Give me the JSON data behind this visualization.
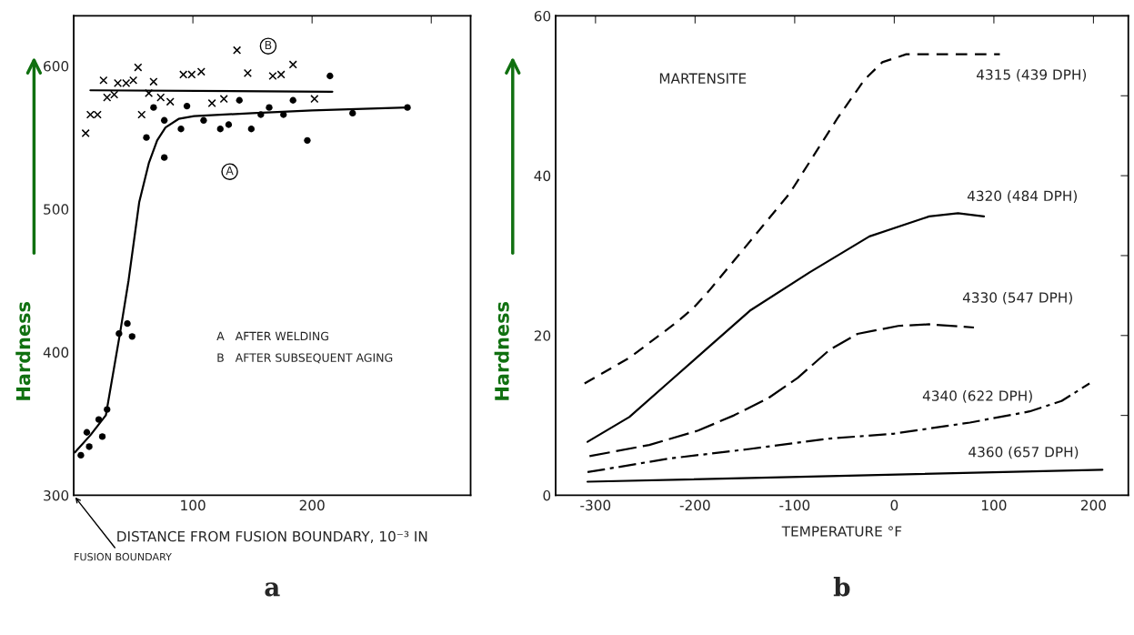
{
  "chart_data": [
    {
      "type": "line",
      "title": "a",
      "xlabel": "DISTANCE FROM FUSION BOUNDARY, 10⁻³ IN",
      "ylabel": "Hardness",
      "xlim": [
        0,
        333
      ],
      "ylim": [
        300,
        635
      ],
      "xticks": [
        100,
        200,
        {
          "value": 300,
          "label": null
        }
      ],
      "yticks": [
        300,
        400,
        500,
        600
      ],
      "grid": false,
      "legend": false,
      "series": [
        {
          "type": "scatter",
          "marker": "cross",
          "color": "#000000",
          "x": [
            10,
            14,
            20,
            25,
            28,
            34,
            37,
            44,
            50,
            54,
            57,
            63,
            67,
            73,
            81,
            92,
            99,
            107,
            116,
            126,
            137,
            146,
            167,
            174,
            184,
            202
          ],
          "values": [
            553,
            566,
            566,
            590,
            578,
            580,
            588,
            588,
            590,
            599,
            566,
            581,
            589,
            578,
            575,
            594,
            594,
            596,
            574,
            577,
            611,
            595,
            593,
            594,
            601,
            577
          ]
        },
        {
          "type": "scatter",
          "marker": "circle",
          "color": "#000000",
          "x": [
            6,
            11,
            13,
            21,
            24,
            28,
            38,
            45,
            49,
            61,
            67,
            76,
            76,
            90,
            95,
            109,
            123,
            130,
            139,
            149,
            157,
            164,
            176,
            184,
            196,
            215,
            234,
            280
          ],
          "values": [
            328,
            344,
            334,
            353,
            341,
            360,
            413,
            420,
            411,
            550,
            571,
            562,
            536,
            556,
            572,
            562,
            556,
            559,
            576,
            556,
            566,
            571,
            566,
            576,
            548,
            593,
            567,
            571
          ]
        },
        {
          "marker": "none",
          "line_style": "solid",
          "color": "#000000",
          "x": [
            1,
            14,
            27,
            39,
            46,
            55,
            63,
            70,
            77,
            88,
            101,
            150,
            200,
            280
          ],
          "values": [
            330,
            342,
            356,
            414,
            450,
            505,
            532,
            548,
            557,
            563,
            565,
            567,
            569,
            571
          ]
        },
        {
          "marker": "none",
          "line_style": "solid",
          "color": "#000000",
          "x": [
            14,
            217
          ],
          "values": [
            583,
            582
          ]
        }
      ],
      "annotations": [
        "A",
        "B",
        "A   AFTER WELDING",
        "B   AFTER SUBSEQUENT AGING",
        "FUSION BOUNDARY"
      ]
    },
    {
      "type": "line",
      "title": "b",
      "xlabel": "TEMPERATURE °F",
      "ylabel": "Hardness",
      "xlim": [
        -340,
        235
      ],
      "ylim": [
        0,
        60
      ],
      "xticks": [
        -300,
        -200,
        -100,
        0,
        100,
        200
      ],
      "yticks": [
        0,
        {
          "value": 10,
          "label": null
        },
        20,
        {
          "value": 30,
          "label": null
        },
        40,
        {
          "value": 50,
          "label": null
        },
        60
      ],
      "grid": false,
      "legend": false,
      "series": [
        {
          "line_style": "dashed",
          "color": "#000000",
          "x": [
            -311,
            -266,
            -218,
            -202,
            -186,
            -150,
            -105,
            -57,
            -30,
            -12,
            12,
            106
          ],
          "values": [
            14.0,
            17.2,
            21.7,
            23.4,
            25.6,
            31.0,
            37.8,
            47.2,
            52.0,
            54.2,
            55.2,
            55.2
          ]
        },
        {
          "line_style": "solid",
          "color": "#000000",
          "x": [
            -308,
            -266,
            -226,
            -186,
            -145,
            -85,
            -25,
            35,
            64,
            90
          ],
          "values": [
            6.7,
            9.8,
            14.2,
            18.6,
            23.1,
            27.9,
            32.4,
            34.9,
            35.3,
            34.9
          ]
        },
        {
          "line_style": "longdashed",
          "color": "#000000",
          "x": [
            -306,
            -246,
            -197,
            -161,
            -126,
            -97,
            -65,
            -37,
            4,
            35,
            80
          ],
          "values": [
            4.9,
            6.3,
            8.1,
            10.0,
            12.2,
            14.7,
            18.2,
            20.2,
            21.2,
            21.4,
            21.0
          ]
        },
        {
          "line_style": "dashdot",
          "color": "#000000",
          "x": [
            -308,
            -226,
            -145,
            -65,
            -1,
            76,
            136,
            168,
            196
          ],
          "values": [
            2.9,
            4.6,
            5.8,
            7.1,
            7.7,
            9.1,
            10.5,
            11.8,
            14.0
          ]
        },
        {
          "line_style": "solid",
          "color": "#000000",
          "x": [
            -308,
            -65,
            209
          ],
          "values": [
            1.7,
            2.4,
            3.2
          ]
        }
      ],
      "annotations": [
        "MARTENSITE",
        "4315 (439 DPH)",
        "4320 (484 DPH)",
        "4330 (547 DPH)",
        "4340 (622 DPH)",
        "4360 (657 DPH)"
      ]
    }
  ]
}
